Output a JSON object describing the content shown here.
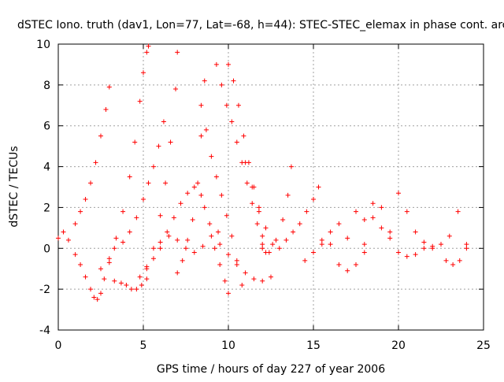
{
  "chart_data": {
    "type": "scatter",
    "title": "dSTEC Iono. truth (dav1, Lon=77, Lat=-68, h=44): STEC-STEC_elemax in phase cont. arc",
    "xlabel": "GPS time / hours of day 227 of year 2006",
    "ylabel": "dSTEC  / TECUs",
    "xlim": [
      0,
      25
    ],
    "ylim": [
      -4,
      10
    ],
    "x_ticks": [
      "0",
      "5",
      "10",
      "15",
      "20",
      "25"
    ],
    "y_ticks": [
      "-4",
      "-2",
      "0",
      "2",
      "4",
      "6",
      "8",
      "10"
    ],
    "grid": true,
    "legend": "none",
    "marker": "plus",
    "color": "#ff0000",
    "series": [
      {
        "x": [
          0.0,
          0.3,
          0.6,
          1.0,
          1.3,
          1.6,
          1.9,
          2.2,
          2.5,
          2.8,
          3.0
        ],
        "y": [
          0.5,
          0.8,
          0.4,
          1.2,
          1.8,
          2.4,
          3.2,
          4.2,
          5.5,
          6.8,
          7.9
        ]
      },
      {
        "x": [
          1.0,
          1.3,
          1.6,
          1.9,
          2.1,
          2.3,
          2.5,
          2.7,
          3.0,
          3.3
        ],
        "y": [
          -0.3,
          -0.8,
          -1.4,
          -2.0,
          -2.4,
          -2.5,
          -2.2,
          -1.5,
          -0.7,
          0.0
        ]
      },
      {
        "x": [
          2.5,
          3.0,
          3.4,
          3.8,
          4.2,
          4.5,
          4.8,
          5.0,
          5.2,
          5.3
        ],
        "y": [
          -1.0,
          -0.5,
          0.5,
          1.8,
          3.5,
          5.2,
          7.2,
          8.6,
          9.6,
          9.9
        ]
      },
      {
        "x": [
          3.3,
          3.7,
          4.0,
          4.3,
          4.6,
          4.9,
          5.2
        ],
        "y": [
          -1.6,
          -1.7,
          -1.8,
          -2.0,
          -2.0,
          -1.8,
          -1.5
        ]
      },
      {
        "x": [
          3.8,
          4.2,
          4.6,
          5.0,
          5.3,
          5.6,
          5.9,
          6.2
        ],
        "y": [
          0.3,
          0.8,
          1.5,
          2.4,
          3.2,
          4.0,
          5.0,
          6.2
        ]
      },
      {
        "x": [
          4.8,
          5.2,
          5.6,
          6.0,
          6.3,
          6.6,
          6.9,
          7.0
        ],
        "y": [
          -1.4,
          -1.0,
          0.0,
          1.6,
          3.2,
          5.2,
          7.8,
          9.6
        ]
      },
      {
        "x": [
          5.2,
          5.6,
          6.0,
          6.4,
          6.8,
          7.2,
          7.6,
          8.0,
          8.4
        ],
        "y": [
          -0.9,
          -0.5,
          0.0,
          0.8,
          1.5,
          2.2,
          2.7,
          3.0,
          2.6
        ]
      },
      {
        "x": [
          6.0,
          6.5,
          7.0,
          7.5,
          8.0,
          8.5,
          9.0,
          9.4
        ],
        "y": [
          0.3,
          0.6,
          0.4,
          0.0,
          -0.2,
          0.1,
          0.6,
          0.8
        ]
      },
      {
        "x": [
          7.0,
          7.3,
          7.6,
          7.9,
          8.2,
          8.4,
          8.6
        ],
        "y": [
          -1.2,
          -0.6,
          0.4,
          1.4,
          3.2,
          5.5,
          8.2
        ]
      },
      {
        "x": [
          8.4,
          8.7,
          9.0,
          9.3,
          9.6,
          9.9,
          10.2,
          10.5,
          10.8
        ],
        "y": [
          7.0,
          5.8,
          4.5,
          3.5,
          2.6,
          1.6,
          0.6,
          -0.6,
          -1.8
        ]
      },
      {
        "x": [
          8.6,
          8.9,
          9.2,
          9.5,
          9.8,
          10.0
        ],
        "y": [
          2.0,
          1.2,
          0.0,
          -0.8,
          -1.6,
          -2.2
        ]
      },
      {
        "x": [
          9.3,
          9.6,
          9.9,
          10.2,
          10.5,
          10.8,
          11.1,
          11.4,
          11.7,
          12.0
        ],
        "y": [
          9.0,
          8.0,
          7.0,
          6.2,
          5.2,
          4.2,
          3.2,
          2.2,
          1.2,
          0.2
        ]
      },
      {
        "x": [
          10.0,
          10.3,
          10.6,
          10.9,
          11.2,
          11.5,
          11.8,
          12.0,
          12.2
        ],
        "y": [
          9.0,
          8.2,
          7.0,
          5.5,
          4.2,
          3.0,
          1.8,
          0.6,
          -0.2
        ]
      },
      {
        "x": [
          9.5,
          10.0,
          10.5,
          11.0,
          11.5,
          12.0,
          12.5
        ],
        "y": [
          0.2,
          -0.3,
          -0.8,
          -1.2,
          -1.5,
          -1.6,
          -1.4
        ]
      },
      {
        "x": [
          11.0,
          11.4,
          11.8,
          12.2,
          12.6
        ],
        "y": [
          4.2,
          3.0,
          2.0,
          1.0,
          0.2
        ]
      },
      {
        "x": [
          12.0,
          12.4,
          12.8,
          13.2,
          13.5,
          13.7
        ],
        "y": [
          0.0,
          -0.2,
          0.4,
          1.4,
          2.6,
          4.0
        ]
      },
      {
        "x": [
          13.0,
          13.4,
          13.8,
          14.2,
          14.6,
          15.0,
          15.3
        ],
        "y": [
          0.0,
          0.4,
          0.8,
          1.2,
          1.8,
          2.4,
          3.0
        ]
      },
      {
        "x": [
          14.5,
          15.0,
          15.5,
          16.0,
          16.5,
          17.0,
          17.5,
          18.0
        ],
        "y": [
          -0.6,
          -0.2,
          0.4,
          0.2,
          -0.8,
          -1.1,
          -0.8,
          -0.2
        ]
      },
      {
        "x": [
          15.5,
          16.0,
          16.5,
          17.0,
          17.5,
          18.0,
          18.5,
          19.0,
          19.5
        ],
        "y": [
          0.2,
          0.8,
          1.2,
          0.5,
          1.8,
          1.4,
          2.2,
          1.0,
          0.8
        ]
      },
      {
        "x": [
          18.0,
          18.5,
          19.0,
          19.5,
          20.0,
          20.5,
          21.0,
          21.5,
          22.0
        ],
        "y": [
          0.2,
          1.5,
          2.0,
          0.5,
          2.7,
          1.8,
          0.8,
          0.3,
          0.0
        ]
      },
      {
        "x": [
          20.0,
          20.5,
          21.0,
          21.5,
          22.0,
          22.5,
          23.0,
          23.5,
          24.0
        ],
        "y": [
          -0.2,
          -0.4,
          -0.3,
          0.0,
          0.1,
          0.2,
          0.6,
          1.8,
          0.2
        ]
      },
      {
        "x": [
          22.8,
          23.2,
          23.6,
          24.0
        ],
        "y": [
          -0.6,
          -0.8,
          -0.6,
          0.0
        ]
      }
    ]
  }
}
